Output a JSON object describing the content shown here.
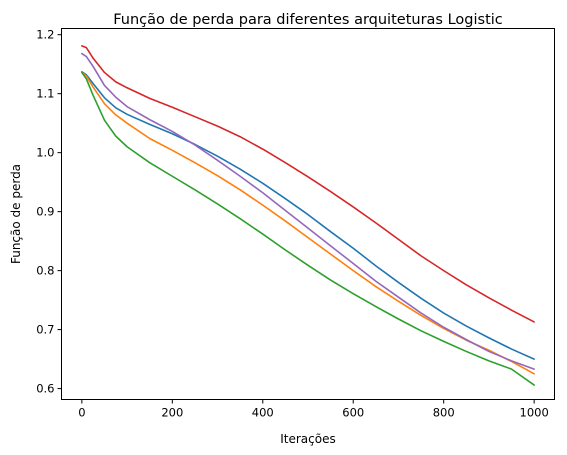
{
  "chart_data": {
    "type": "line",
    "title": "Função de perda para diferentes arquiteturas Logistic",
    "xlabel": "Iterações",
    "ylabel": "Função de perda",
    "xlim": [
      -45,
      1045
    ],
    "ylim": [
      0.5815,
      1.2105
    ],
    "xticks": [
      0,
      200,
      400,
      600,
      800,
      1000
    ],
    "yticks": [
      0.6,
      0.7,
      0.8,
      0.9,
      1.0,
      1.1,
      1.2
    ],
    "xtick_labels": [
      "0",
      "200",
      "400",
      "600",
      "800",
      "1000"
    ],
    "ytick_labels": [
      "0.6",
      "0.7",
      "0.8",
      "0.9",
      "1.0",
      "1.1",
      "1.2"
    ],
    "grid": false,
    "legend": "none",
    "series": [
      {
        "color": "#1f77b4",
        "x": [
          0,
          10,
          25,
          50,
          75,
          100,
          150,
          200,
          250,
          300,
          350,
          400,
          450,
          500,
          550,
          600,
          650,
          700,
          750,
          800,
          850,
          900,
          950,
          1000
        ],
        "y": [
          1.137,
          1.132,
          1.117,
          1.093,
          1.076,
          1.065,
          1.048,
          1.032,
          1.014,
          0.994,
          0.972,
          0.948,
          0.922,
          0.895,
          0.866,
          0.838,
          0.808,
          0.78,
          0.753,
          0.728,
          0.706,
          0.686,
          0.667,
          0.65
        ]
      },
      {
        "color": "#ff7f0e",
        "x": [
          0,
          10,
          25,
          50,
          75,
          100,
          150,
          200,
          250,
          300,
          350,
          400,
          450,
          500,
          550,
          600,
          650,
          700,
          750,
          800,
          850,
          900,
          950,
          1000
        ],
        "y": [
          1.136,
          1.13,
          1.111,
          1.083,
          1.064,
          1.05,
          1.024,
          1.004,
          0.983,
          0.961,
          0.937,
          0.911,
          0.884,
          0.856,
          0.828,
          0.8,
          0.773,
          0.748,
          0.724,
          0.702,
          0.682,
          0.665,
          0.646,
          0.625
        ]
      },
      {
        "color": "#2ca02c",
        "x": [
          0,
          10,
          25,
          50,
          75,
          100,
          150,
          200,
          250,
          300,
          350,
          400,
          450,
          500,
          550,
          600,
          650,
          700,
          750,
          800,
          850,
          900,
          950,
          1000
        ],
        "y": [
          1.136,
          1.125,
          1.097,
          1.055,
          1.028,
          1.01,
          0.983,
          0.96,
          0.937,
          0.913,
          0.888,
          0.862,
          0.835,
          0.809,
          0.784,
          0.761,
          0.739,
          0.718,
          0.698,
          0.68,
          0.663,
          0.647,
          0.633,
          0.606
        ]
      },
      {
        "color": "#d62728",
        "x": [
          0,
          10,
          25,
          50,
          75,
          100,
          150,
          200,
          250,
          300,
          350,
          400,
          450,
          500,
          550,
          600,
          650,
          700,
          750,
          800,
          850,
          900,
          950,
          1000
        ],
        "y": [
          1.181,
          1.178,
          1.16,
          1.136,
          1.12,
          1.11,
          1.092,
          1.077,
          1.061,
          1.045,
          1.027,
          1.006,
          0.983,
          0.959,
          0.934,
          0.908,
          0.881,
          0.853,
          0.825,
          0.8,
          0.776,
          0.754,
          0.733,
          0.713
        ]
      },
      {
        "color": "#9467bd",
        "x": [
          0,
          10,
          25,
          50,
          75,
          100,
          150,
          200,
          250,
          300,
          350,
          400,
          450,
          500,
          550,
          600,
          650,
          700,
          750,
          800,
          850,
          900,
          950,
          1000
        ],
        "y": [
          1.168,
          1.163,
          1.146,
          1.114,
          1.094,
          1.078,
          1.056,
          1.036,
          1.013,
          0.987,
          0.96,
          0.932,
          0.902,
          0.872,
          0.842,
          0.812,
          0.782,
          0.755,
          0.728,
          0.704,
          0.683,
          0.663,
          0.647,
          0.633
        ]
      }
    ]
  }
}
